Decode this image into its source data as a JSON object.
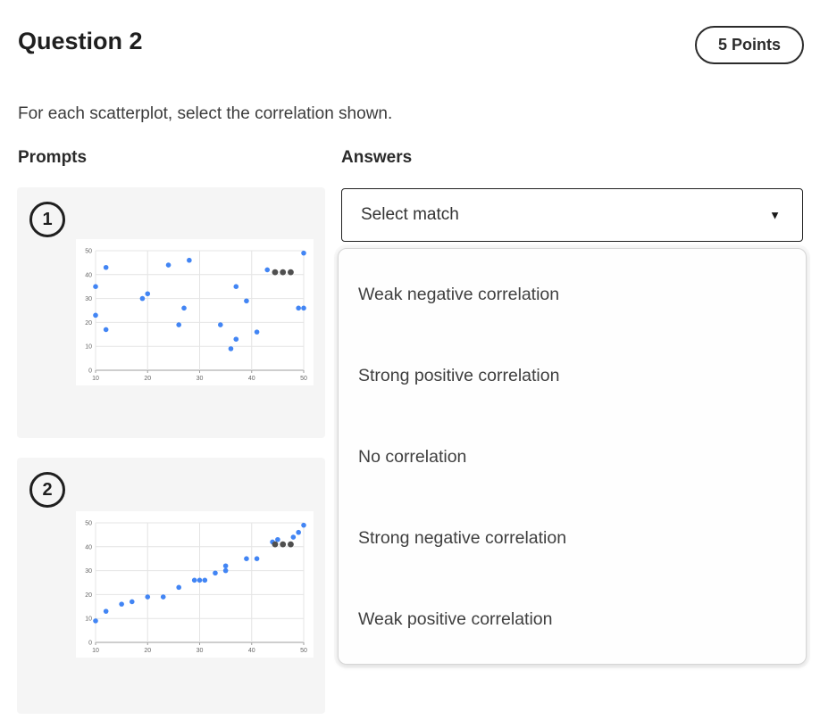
{
  "header": {
    "title": "Question 2",
    "points_label": "5 Points"
  },
  "instruction": "For each scatterplot, select the correlation shown.",
  "columns": {
    "prompts_label": "Prompts",
    "answers_label": "Answers"
  },
  "prompts": [
    {
      "number": "1"
    },
    {
      "number": "2"
    }
  ],
  "answers": {
    "select_placeholder": "Select match",
    "caret_icon": "▼",
    "options": [
      "Weak negative correlation",
      "Strong positive correlation",
      "No correlation",
      "Strong negative correlation",
      "Weak positive correlation"
    ]
  },
  "colors": {
    "point_blue": "#4285f4",
    "point_gray": "#4f4f4f",
    "grid": "#e4e4e4",
    "axis": "#9e9e9e",
    "tick_label": "#666666",
    "card_bg": "#f5f5f5"
  },
  "chart_data": [
    {
      "type": "scatter",
      "title": "",
      "xlabel": "",
      "ylabel": "",
      "xlim": [
        10,
        50
      ],
      "ylim": [
        0,
        50
      ],
      "xticks": [
        10,
        20,
        30,
        40,
        50
      ],
      "yticks": [
        0,
        10,
        20,
        30,
        40,
        50
      ],
      "grid": true,
      "legend": false,
      "series": [
        {
          "name": "blue-points",
          "color": "#4285f4",
          "r": 2.8,
          "points": [
            [
              10,
              35
            ],
            [
              10,
              23
            ],
            [
              12,
              43
            ],
            [
              12,
              17
            ],
            [
              19,
              30
            ],
            [
              20,
              32
            ],
            [
              24,
              44
            ],
            [
              26,
              19
            ],
            [
              27,
              26
            ],
            [
              28,
              46
            ],
            [
              34,
              19
            ],
            [
              36,
              9
            ],
            [
              37,
              35
            ],
            [
              37,
              13
            ],
            [
              39,
              29
            ],
            [
              41,
              16
            ],
            [
              43,
              42
            ],
            [
              49,
              26
            ],
            [
              50,
              26
            ],
            [
              50,
              49
            ]
          ]
        },
        {
          "name": "gray-points",
          "color": "#4f4f4f",
          "r": 3.4,
          "points": [
            [
              44.5,
              41
            ],
            [
              46,
              41
            ],
            [
              47.5,
              41
            ]
          ]
        }
      ]
    },
    {
      "type": "scatter",
      "title": "",
      "xlabel": "",
      "ylabel": "",
      "xlim": [
        10,
        50
      ],
      "ylim": [
        0,
        50
      ],
      "xticks": [
        10,
        20,
        30,
        40,
        50
      ],
      "yticks": [
        0,
        10,
        20,
        30,
        40,
        50
      ],
      "grid": true,
      "legend": false,
      "series": [
        {
          "name": "blue-points",
          "color": "#4285f4",
          "r": 2.8,
          "points": [
            [
              10,
              9
            ],
            [
              12,
              13
            ],
            [
              15,
              16
            ],
            [
              17,
              17
            ],
            [
              20,
              19
            ],
            [
              23,
              19
            ],
            [
              26,
              23
            ],
            [
              29,
              26
            ],
            [
              30,
              26
            ],
            [
              31,
              26
            ],
            [
              33,
              29
            ],
            [
              35,
              30
            ],
            [
              35,
              32
            ],
            [
              39,
              35
            ],
            [
              41,
              35
            ],
            [
              44,
              42
            ],
            [
              45,
              43
            ],
            [
              48,
              44
            ],
            [
              49,
              46
            ],
            [
              50,
              49
            ]
          ]
        },
        {
          "name": "gray-points",
          "color": "#4f4f4f",
          "r": 3.4,
          "points": [
            [
              44.5,
              41
            ],
            [
              46,
              41
            ],
            [
              47.5,
              41
            ]
          ]
        }
      ]
    }
  ]
}
